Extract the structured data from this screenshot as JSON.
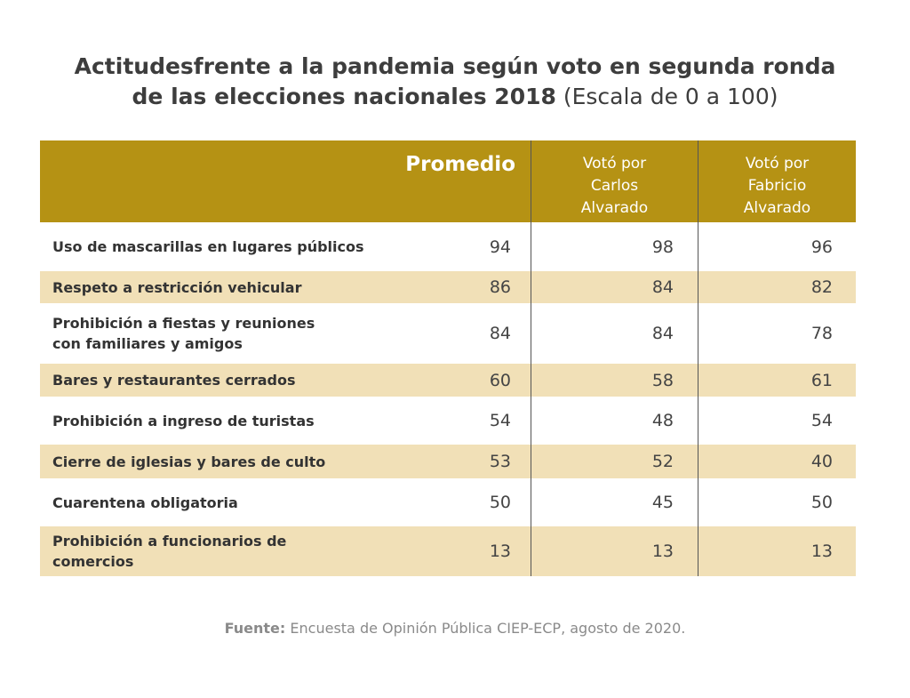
{
  "chart_data": {
    "type": "table",
    "title": "Actitudesfrente a la pandemia según voto en segunda ronda de las elecciones nacionales 2018",
    "subtitle": "(Escala de 0 a 100)",
    "columns": [
      "Promedio",
      "Votó por Carlos Alvarado",
      "Votó por Fabricio Alvarado"
    ],
    "rows": [
      {
        "label": "Uso de mascarillas en lugares  públicos",
        "values": [
          94,
          98,
          96
        ]
      },
      {
        "label": "Respeto a restricción vehicular",
        "values": [
          86,
          84,
          82
        ]
      },
      {
        "label": "Prohibición a fiestas y reuniones\n con familiares y amigos",
        "values": [
          84,
          84,
          78
        ]
      },
      {
        "label": "Bares y restaurantes cerrados",
        "values": [
          60,
          58,
          61
        ]
      },
      {
        "label": "Prohibición a ingreso de turistas",
        "values": [
          54,
          48,
          54
        ]
      },
      {
        "label": "Cierre de iglesias y bares de culto",
        "values": [
          53,
          52,
          40
        ]
      },
      {
        "label": "Cuarentena obligatoria",
        "values": [
          50,
          45,
          50
        ]
      },
      {
        "label": "Prohibición a funcionarios de\n comercios",
        "values": [
          13,
          13,
          13
        ]
      }
    ],
    "source_label": "Fuente:",
    "source_text": "Encuesta de Opinión Pública CIEP-ECP, agosto de 2020."
  },
  "colors": {
    "header_bg": "#b59214",
    "band_bg": "#f1e0b7",
    "divider": "#555555"
  },
  "title_lines": {
    "line1": "Actitudesfrente a la pandemia según voto en segunda ronda",
    "line2": "de las elecciones nacionales 2018"
  },
  "header": {
    "promedio": "Promedio",
    "col1": "Votó por\nCarlos\nAlvarado",
    "col2": "Votó por\nFabricio\nAlvarado"
  }
}
